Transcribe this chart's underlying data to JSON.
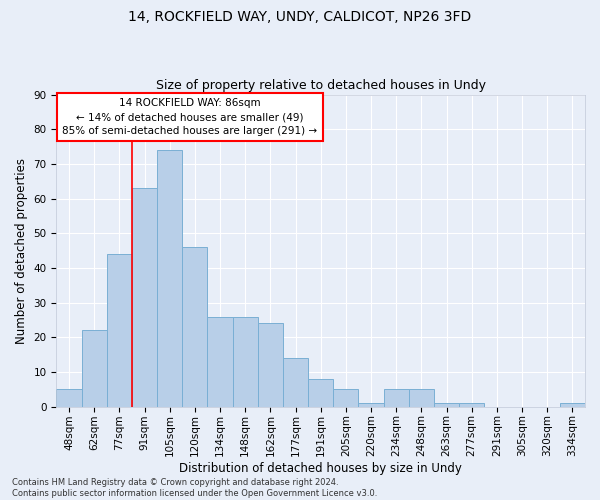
{
  "title1": "14, ROCKFIELD WAY, UNDY, CALDICOT, NP26 3FD",
  "title2": "Size of property relative to detached houses in Undy",
  "xlabel": "Distribution of detached houses by size in Undy",
  "ylabel": "Number of detached properties",
  "categories": [
    "48sqm",
    "62sqm",
    "77sqm",
    "91sqm",
    "105sqm",
    "120sqm",
    "134sqm",
    "148sqm",
    "162sqm",
    "177sqm",
    "191sqm",
    "205sqm",
    "220sqm",
    "234sqm",
    "248sqm",
    "263sqm",
    "277sqm",
    "291sqm",
    "305sqm",
    "320sqm",
    "334sqm"
  ],
  "values": [
    5,
    22,
    44,
    63,
    74,
    46,
    26,
    26,
    24,
    14,
    8,
    5,
    1,
    5,
    5,
    1,
    1,
    0,
    0,
    0,
    1
  ],
  "bar_color": "#b8cfe8",
  "bar_edge_color": "#7aafd4",
  "red_line_x": 2.5,
  "ylim": [
    0,
    90
  ],
  "yticks": [
    0,
    10,
    20,
    30,
    40,
    50,
    60,
    70,
    80,
    90
  ],
  "annotation_line1": "14 ROCKFIELD WAY: 86sqm",
  "annotation_line2": "← 14% of detached houses are smaller (49)",
  "annotation_line3": "85% of semi-detached houses are larger (291) →",
  "footer_line1": "Contains HM Land Registry data © Crown copyright and database right 2024.",
  "footer_line2": "Contains public sector information licensed under the Open Government Licence v3.0.",
  "bg_color": "#e8eef8",
  "plot_bg_color": "#e8eef8",
  "grid_color": "#ffffff",
  "title1_fontsize": 10,
  "title2_fontsize": 9,
  "tick_fontsize": 7.5,
  "label_fontsize": 8.5,
  "footer_fontsize": 6
}
